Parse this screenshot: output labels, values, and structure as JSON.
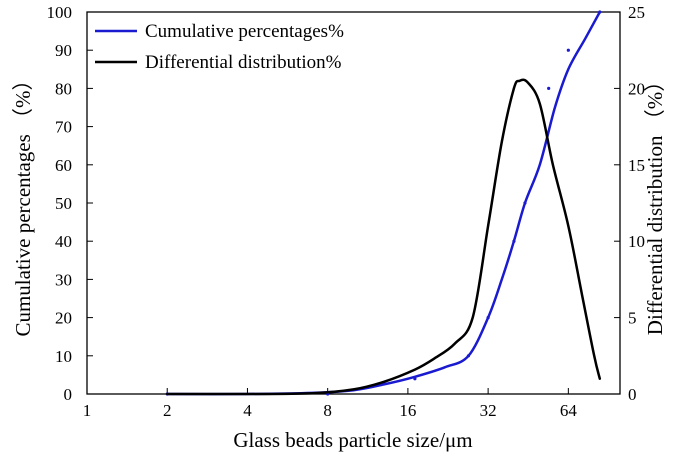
{
  "chart_data": {
    "type": "line",
    "title": "",
    "xlabel": "Glass beads particle size/μm",
    "ylabel_left": "Cumulative percentages （%）",
    "ylabel_right": "Differential distribution （%）",
    "x_scale": "log2",
    "xlim": [
      1,
      100
    ],
    "ylim_left": [
      0,
      100
    ],
    "ylim_right": [
      0,
      25
    ],
    "x_ticks": [
      1,
      2,
      4,
      8,
      16,
      32,
      64
    ],
    "x_tick_labels": [
      "1",
      "2",
      "4",
      "8",
      "16",
      "32",
      "64"
    ],
    "y_left_ticks": [
      0,
      10,
      20,
      30,
      40,
      50,
      60,
      70,
      80,
      90,
      100
    ],
    "y_left_tick_labels": [
      "0",
      "10",
      "20",
      "30",
      "40",
      "50",
      "60",
      "70",
      "80",
      "90",
      "100"
    ],
    "y_right_ticks": [
      0,
      5,
      10,
      15,
      20,
      25
    ],
    "y_right_tick_labels": [
      "0",
      "5",
      "10",
      "15",
      "20",
      "25"
    ],
    "legend_position": "top-left",
    "series": [
      {
        "name": "Cumulative percentages%",
        "axis": "left",
        "color": "#1a1ad0",
        "x": [
          2,
          4,
          7,
          10,
          13,
          17,
          22,
          27,
          32,
          36,
          40,
          44,
          50,
          57,
          64,
          74,
          84
        ],
        "values": [
          0,
          0,
          0.3,
          1,
          2.5,
          4.5,
          7,
          10,
          20,
          30,
          40,
          50,
          60,
          75,
          85,
          93,
          100
        ],
        "markers_x": [
          2,
          8,
          13,
          17,
          27,
          32,
          40,
          44,
          54,
          64,
          84
        ],
        "markers_y": [
          0,
          0,
          3,
          4,
          10,
          20,
          40,
          50,
          80,
          90,
          100
        ]
      },
      {
        "name": "Differential distribution%",
        "axis": "right",
        "color": "#000000",
        "x": [
          2,
          4,
          7,
          10,
          13,
          17,
          20,
          24,
          28,
          32,
          36,
          40,
          42,
          45,
          50,
          56,
          64,
          72,
          80,
          84
        ],
        "values": [
          0,
          0,
          0.05,
          0.3,
          0.8,
          1.6,
          2.3,
          3.3,
          5.0,
          11.0,
          16.5,
          20.0,
          20.5,
          20.4,
          19.0,
          15.0,
          11.0,
          6.5,
          2.5,
          1.0
        ]
      }
    ]
  }
}
